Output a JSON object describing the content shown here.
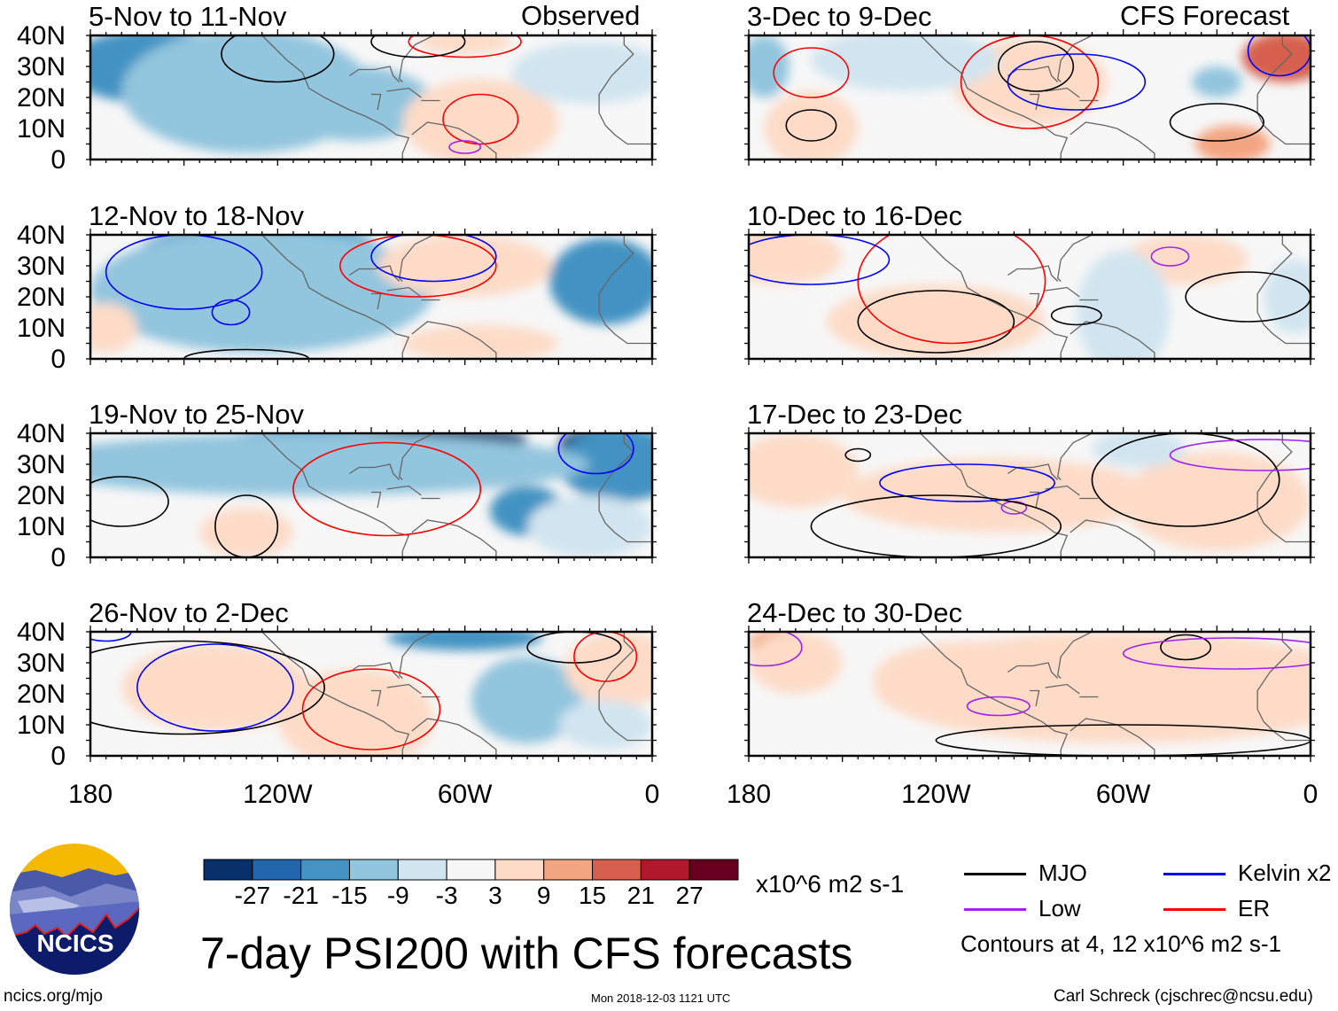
{
  "header": {
    "left_label": "Observed",
    "right_label": "CFS Forecast"
  },
  "axes": {
    "y_ticks": [
      {
        "lat": 40,
        "label": "40N"
      },
      {
        "lat": 30,
        "label": "30N"
      },
      {
        "lat": 20,
        "label": "20N"
      },
      {
        "lat": 10,
        "label": "10N"
      },
      {
        "lat": 0,
        "label": "0"
      }
    ],
    "x_ticks": [
      {
        "lonW": 180,
        "label": "180"
      },
      {
        "lonW": 120,
        "label": "120W"
      },
      {
        "lonW": 60,
        "label": "60W"
      },
      {
        "lonW": 0,
        "label": "0"
      }
    ],
    "lon_range_W": [
      180,
      0
    ],
    "lat_range": [
      0,
      40
    ]
  },
  "panels": [
    {
      "title": "5-Nov to 11-Nov",
      "column": "observed",
      "row": 0,
      "shading": [
        [
          165,
          33,
          -27,
          18,
          7
        ],
        [
          160,
          30,
          -15,
          28,
          12
        ],
        [
          125,
          17,
          -27,
          14,
          9
        ],
        [
          125,
          18,
          -15,
          22,
          14
        ],
        [
          130,
          22,
          -9,
          40,
          20
        ],
        [
          95,
          18,
          -9,
          25,
          12
        ],
        [
          55,
          12,
          9,
          14,
          9
        ],
        [
          55,
          12,
          3,
          25,
          14
        ],
        [
          20,
          28,
          -3,
          25,
          10
        ],
        [
          60,
          38,
          3,
          15,
          4
        ]
      ],
      "contours": [
        [
          "ER",
          55,
          13,
          12,
          8
        ],
        [
          "Low",
          60,
          4,
          5,
          2
        ],
        [
          "MJO",
          120,
          34,
          18,
          9
        ],
        [
          "ER",
          60,
          38,
          18,
          5
        ],
        [
          "MJO",
          75,
          38,
          15,
          5
        ]
      ]
    },
    {
      "title": "12-Nov to 18-Nov",
      "column": "observed",
      "row": 1,
      "shading": [
        [
          145,
          32,
          -27,
          10,
          6
        ],
        [
          145,
          30,
          -15,
          22,
          12
        ],
        [
          110,
          32,
          -27,
          15,
          9
        ],
        [
          110,
          30,
          -15,
          25,
          14
        ],
        [
          125,
          22,
          -9,
          55,
          20
        ],
        [
          12,
          32,
          -27,
          8,
          5
        ],
        [
          15,
          25,
          -15,
          18,
          14
        ],
        [
          60,
          32,
          9,
          15,
          6
        ],
        [
          60,
          30,
          3,
          28,
          10
        ],
        [
          175,
          10,
          3,
          10,
          8
        ],
        [
          55,
          5,
          3,
          25,
          6
        ]
      ],
      "contours": [
        [
          "Kelvin",
          150,
          28,
          25,
          12
        ],
        [
          "Kelvin",
          135,
          15,
          6,
          4
        ],
        [
          "ER",
          75,
          30,
          25,
          10
        ],
        [
          "Kelvin",
          70,
          33,
          20,
          8
        ],
        [
          "MJO",
          130,
          0,
          20,
          3
        ]
      ]
    },
    {
      "title": "19-Nov to 25-Nov",
      "column": "observed",
      "row": 2,
      "shading": [
        [
          120,
          35,
          -27,
          5,
          3
        ],
        [
          110,
          36,
          -15,
          30,
          6
        ],
        [
          70,
          38,
          -27,
          30,
          4
        ],
        [
          15,
          36,
          -27,
          15,
          6
        ],
        [
          10,
          30,
          -15,
          20,
          12
        ],
        [
          40,
          15,
          -15,
          12,
          8
        ],
        [
          110,
          30,
          -9,
          90,
          10
        ],
        [
          130,
          8,
          3,
          15,
          8
        ],
        [
          20,
          10,
          -3,
          20,
          10
        ]
      ],
      "contours": [
        [
          "MJO",
          130,
          10,
          10,
          10
        ],
        [
          "ER",
          85,
          22,
          30,
          15
        ],
        [
          "Kelvin",
          18,
          35,
          12,
          8
        ],
        [
          "MJO",
          170,
          18,
          15,
          8
        ]
      ]
    },
    {
      "title": "26-Nov to 2-Dec",
      "column": "observed",
      "row": 3,
      "shading": [
        [
          140,
          25,
          21,
          6,
          4
        ],
        [
          140,
          24,
          15,
          15,
          8
        ],
        [
          140,
          22,
          3,
          30,
          14
        ],
        [
          95,
          10,
          9,
          12,
          9
        ],
        [
          95,
          12,
          3,
          25,
          16
        ],
        [
          40,
          15,
          -15,
          6,
          4
        ],
        [
          40,
          18,
          -9,
          18,
          14
        ],
        [
          60,
          38,
          -15,
          25,
          4
        ],
        [
          10,
          28,
          3,
          18,
          12
        ],
        [
          15,
          10,
          -3,
          15,
          8
        ]
      ],
      "contours": [
        [
          "Kelvin",
          140,
          22,
          25,
          14
        ],
        [
          "MJO",
          150,
          22,
          45,
          15
        ],
        [
          "ER",
          90,
          15,
          22,
          13
        ],
        [
          "MJO",
          25,
          35,
          15,
          5
        ],
        [
          "ER",
          15,
          32,
          10,
          8
        ],
        [
          "Kelvin",
          175,
          40,
          8,
          3
        ]
      ]
    },
    {
      "title": "3-Dec to 9-Dec",
      "column": "forecast",
      "row": 0,
      "shading": [
        [
          8,
          35,
          27,
          6,
          5
        ],
        [
          8,
          33,
          15,
          14,
          8
        ],
        [
          90,
          25,
          9,
          15,
          10
        ],
        [
          90,
          25,
          3,
          25,
          14
        ],
        [
          160,
          10,
          3,
          15,
          12
        ],
        [
          25,
          5,
          9,
          12,
          6
        ],
        [
          130,
          36,
          -15,
          15,
          5
        ],
        [
          130,
          32,
          -3,
          30,
          10
        ],
        [
          30,
          25,
          -9,
          8,
          5
        ],
        [
          175,
          30,
          -9,
          8,
          10
        ]
      ],
      "contours": [
        [
          "ER",
          160,
          28,
          12,
          8
        ],
        [
          "MJO",
          160,
          11,
          8,
          5
        ],
        [
          "ER",
          90,
          25,
          22,
          15
        ],
        [
          "MJO",
          88,
          30,
          12,
          8
        ],
        [
          "Kelvin",
          75,
          25,
          22,
          9
        ],
        [
          "MJO",
          30,
          12,
          15,
          6
        ],
        [
          "Kelvin",
          10,
          35,
          10,
          8
        ]
      ]
    },
    {
      "title": "10-Dec to 16-Dec",
      "column": "forecast",
      "row": 1,
      "shading": [
        [
          170,
          35,
          15,
          10,
          5
        ],
        [
          170,
          33,
          3,
          20,
          9
        ],
        [
          120,
          12,
          15,
          15,
          7
        ],
        [
          120,
          12,
          3,
          35,
          12
        ],
        [
          40,
          32,
          3,
          20,
          8
        ],
        [
          60,
          15,
          -3,
          15,
          20
        ],
        [
          5,
          20,
          -3,
          10,
          12
        ]
      ],
      "contours": [
        [
          "MJO",
          120,
          12,
          25,
          10
        ],
        [
          "ER",
          115,
          25,
          30,
          20
        ],
        [
          "Kelvin",
          160,
          32,
          25,
          8
        ],
        [
          "Low",
          45,
          33,
          6,
          3
        ],
        [
          "MJO",
          20,
          20,
          20,
          8
        ],
        [
          "MJO",
          75,
          14,
          8,
          3
        ]
      ]
    },
    {
      "title": "17-Dec to 23-Dec",
      "column": "forecast",
      "row": 2,
      "shading": [
        [
          170,
          33,
          15,
          10,
          6
        ],
        [
          165,
          28,
          3,
          20,
          12
        ],
        [
          90,
          16,
          9,
          20,
          7
        ],
        [
          100,
          20,
          3,
          50,
          12
        ],
        [
          25,
          12,
          9,
          10,
          6
        ],
        [
          30,
          18,
          3,
          30,
          16
        ],
        [
          55,
          35,
          -3,
          15,
          6
        ]
      ],
      "contours": [
        [
          "MJO",
          145,
          33,
          4,
          2
        ],
        [
          "Kelvin",
          110,
          24,
          28,
          6
        ],
        [
          "MJO",
          40,
          25,
          30,
          15
        ],
        [
          "Low",
          15,
          33,
          30,
          5
        ],
        [
          "Low",
          95,
          16,
          4,
          2
        ],
        [
          "MJO",
          120,
          10,
          40,
          10
        ]
      ]
    },
    {
      "title": "24-Dec to 30-Dec",
      "column": "forecast",
      "row": 3,
      "shading": [
        [
          170,
          36,
          9,
          10,
          5
        ],
        [
          25,
          30,
          9,
          12,
          8
        ],
        [
          60,
          22,
          3,
          80,
          18
        ],
        [
          110,
          25,
          3,
          30,
          12
        ],
        [
          165,
          30,
          3,
          15,
          10
        ]
      ],
      "contours": [
        [
          "MJO",
          40,
          35,
          8,
          4
        ],
        [
          "Low",
          25,
          33,
          35,
          5
        ],
        [
          "Low",
          100,
          16,
          10,
          3
        ],
        [
          "Low",
          175,
          35,
          12,
          6
        ],
        [
          "MJO",
          60,
          5,
          60,
          5
        ]
      ]
    }
  ],
  "colorbar": {
    "colors": [
      "#08306b",
      "#2166ac",
      "#4393c3",
      "#92c5de",
      "#d1e5f0",
      "#f7f7f7",
      "#fddbc7",
      "#f4a582",
      "#d6604d",
      "#b2182b",
      "#67001f"
    ],
    "labels": [
      "-27",
      "-21",
      "-15",
      "-9",
      "-3",
      "3",
      "9",
      "15",
      "21",
      "27"
    ],
    "units": "x10^6 m2 s-1"
  },
  "legend": {
    "items": [
      {
        "key": "MJO",
        "label": "MJO",
        "color": "#000000"
      },
      {
        "key": "Kelvin",
        "label": "Kelvin x2",
        "color": "#0000ff"
      },
      {
        "key": "Low",
        "label": "Low",
        "color": "#a020f0"
      },
      {
        "key": "ER",
        "label": "ER",
        "color": "#ff0000"
      }
    ],
    "note": "Contours at 4, 12 x10^6 m2 s-1"
  },
  "footer": {
    "title": "7-day PSI200 with CFS forecasts",
    "logo_text": "NCICS",
    "url": "ncics.org/mjo",
    "timestamp": "Mon 2018-12-03 1121 UTC",
    "credit": "Carl Schreck (cjschrec@ncsu.edu)"
  }
}
